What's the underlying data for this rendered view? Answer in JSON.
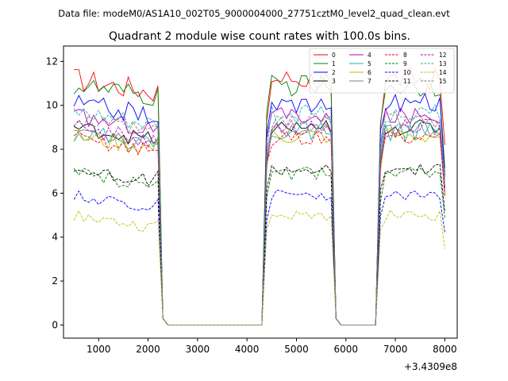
{
  "chart_data": {
    "type": "line",
    "suptitle": "Data file: modeM0/AS1A10_002T05_9000004000_27751cztM0_level2_quad_clean.evt",
    "title": "Quadrant 2 module wise count rates with 100.0s bins.",
    "xlabel": "",
    "ylabel": "",
    "offset_label": "+3.4309e8",
    "xlim": [
      290,
      8250
    ],
    "ylim": [
      -0.6,
      12.7
    ],
    "xticks": [
      1000,
      2000,
      3000,
      4000,
      5000,
      6000,
      7000,
      8000
    ],
    "yticks": [
      0,
      2,
      4,
      6,
      8,
      10,
      12
    ],
    "xtick_labels": [
      "1000",
      "2000",
      "3000",
      "4000",
      "5000",
      "6000",
      "7000",
      "8000"
    ],
    "ytick_labels": [
      "0",
      "2",
      "4",
      "6",
      "8",
      "10",
      "12"
    ],
    "legend_location": "upper right",
    "bin_start": 500,
    "bin_width": 100,
    "segments": [
      {
        "start": 500,
        "end": 2200,
        "shape": "on"
      },
      {
        "start": 2200,
        "end": 2400,
        "shape": "fall"
      },
      {
        "start": 2400,
        "end": 4300,
        "shape": "off"
      },
      {
        "start": 4300,
        "end": 4500,
        "shape": "rise"
      },
      {
        "start": 4500,
        "end": 5700,
        "shape": "on"
      },
      {
        "start": 5700,
        "end": 5900,
        "shape": "fall"
      },
      {
        "start": 5900,
        "end": 6600,
        "shape": "off"
      },
      {
        "start": 6600,
        "end": 6800,
        "shape": "rise"
      },
      {
        "start": 6800,
        "end": 8000,
        "shape": "on"
      },
      {
        "start": 8000,
        "end": 8000,
        "shape": "end"
      }
    ],
    "series": [
      {
        "name": "0",
        "color": "#ff0000",
        "dash": "solid",
        "level": 11.2,
        "amp": 0.55
      },
      {
        "name": "1",
        "color": "#008000",
        "dash": "solid",
        "level": 10.9,
        "amp": 0.5
      },
      {
        "name": "2",
        "color": "#0000ff",
        "dash": "solid",
        "level": 10.1,
        "amp": 0.45
      },
      {
        "name": "3",
        "color": "#000000",
        "dash": "solid",
        "level": 9.0,
        "amp": 0.35
      },
      {
        "name": "4",
        "color": "#bf00bf",
        "dash": "solid",
        "level": 9.5,
        "amp": 0.4
      },
      {
        "name": "5",
        "color": "#20b2aa",
        "dash": "solid",
        "level": 8.8,
        "amp": 0.45
      },
      {
        "name": "6",
        "color": "#bfbf00",
        "dash": "solid",
        "level": 8.6,
        "amp": 0.4
      },
      {
        "name": "7",
        "color": "#808080",
        "dash": "solid",
        "level": 8.9,
        "amp": 0.35
      },
      {
        "name": "8",
        "color": "#ff0000",
        "dash": "dashed",
        "level": 8.5,
        "amp": 0.35
      },
      {
        "name": "9",
        "color": "#008000",
        "dash": "dashed",
        "level": 6.9,
        "amp": 0.3
      },
      {
        "name": "10",
        "color": "#0000ff",
        "dash": "dashed",
        "level": 5.9,
        "amp": 0.25
      },
      {
        "name": "11",
        "color": "#000000",
        "dash": "dashed",
        "level": 7.1,
        "amp": 0.3
      },
      {
        "name": "12",
        "color": "#bf00bf",
        "dash": "dashed",
        "level": 9.0,
        "amp": 0.4
      },
      {
        "name": "13",
        "color": "#20b2aa",
        "dash": "dashed",
        "level": 9.6,
        "amp": 0.45
      },
      {
        "name": "14",
        "color": "#bfbf00",
        "dash": "dashed",
        "level": 5.0,
        "amp": 0.25
      },
      {
        "name": "15",
        "color": "#808080",
        "dash": "dashed",
        "level": 9.3,
        "amp": 0.4
      }
    ]
  }
}
